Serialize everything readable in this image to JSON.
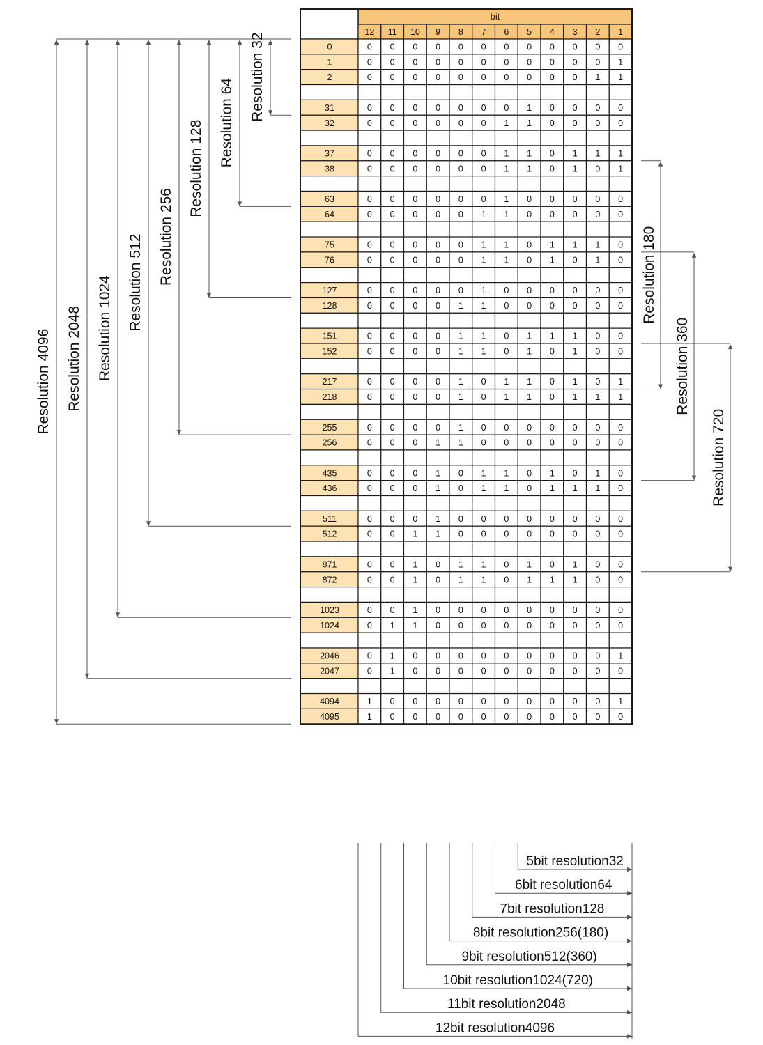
{
  "header": {
    "title": "bit",
    "bits": [
      "12",
      "11",
      "10",
      "9",
      "8",
      "7",
      "6",
      "5",
      "4",
      "3",
      "2",
      "1"
    ]
  },
  "rows": [
    {
      "label": "0",
      "bits": "000000000000"
    },
    {
      "label": "1",
      "bits": "000000000001"
    },
    {
      "label": "2",
      "bits": "000000000011"
    },
    {
      "label": "",
      "bits": ""
    },
    {
      "label": "31",
      "bits": "000000010000"
    },
    {
      "label": "32",
      "bits": "000000110000"
    },
    {
      "label": "",
      "bits": ""
    },
    {
      "label": "37",
      "bits": "000000110111"
    },
    {
      "label": "38",
      "bits": "000000110101"
    },
    {
      "label": "",
      "bits": ""
    },
    {
      "label": "63",
      "bits": "000000100000"
    },
    {
      "label": "64",
      "bits": "000001100000"
    },
    {
      "label": "",
      "bits": ""
    },
    {
      "label": "75",
      "bits": "000001101110"
    },
    {
      "label": "76",
      "bits": "000001101010"
    },
    {
      "label": "",
      "bits": ""
    },
    {
      "label": "127",
      "bits": "000001000000"
    },
    {
      "label": "128",
      "bits": "000011000000"
    },
    {
      "label": "",
      "bits": ""
    },
    {
      "label": "151",
      "bits": "000011011100"
    },
    {
      "label": "152",
      "bits": "000011010100"
    },
    {
      "label": "",
      "bits": ""
    },
    {
      "label": "217",
      "bits": "000010110101"
    },
    {
      "label": "218",
      "bits": "000010110111"
    },
    {
      "label": "",
      "bits": ""
    },
    {
      "label": "255",
      "bits": "000010000000"
    },
    {
      "label": "256",
      "bits": "000110000000"
    },
    {
      "label": "",
      "bits": ""
    },
    {
      "label": "435",
      "bits": "000101101010"
    },
    {
      "label": "436",
      "bits": "000101101110"
    },
    {
      "label": "",
      "bits": ""
    },
    {
      "label": "511",
      "bits": "000100000000"
    },
    {
      "label": "512",
      "bits": "001100000000"
    },
    {
      "label": "",
      "bits": ""
    },
    {
      "label": "871",
      "bits": "001011010100"
    },
    {
      "label": "872",
      "bits": "001011011100"
    },
    {
      "label": "",
      "bits": ""
    },
    {
      "label": "1023",
      "bits": "001000000000"
    },
    {
      "label": "1024",
      "bits": "011000000000"
    },
    {
      "label": "",
      "bits": ""
    },
    {
      "label": "2046",
      "bits": "010000000001"
    },
    {
      "label": "2047",
      "bits": "010000000000"
    },
    {
      "label": "",
      "bits": ""
    },
    {
      "label": "4094",
      "bits": "100000000001"
    },
    {
      "label": "4095",
      "bits": "100000000000"
    }
  ],
  "left_brackets": [
    {
      "label": "Resolution 32",
      "end_row": "31"
    },
    {
      "label": "Resolution 64",
      "end_row": "63"
    },
    {
      "label": "Resolution 128",
      "end_row": "127"
    },
    {
      "label": "Resolution 256",
      "end_row": "255"
    },
    {
      "label": "Resolution 512",
      "end_row": "511"
    },
    {
      "label": "Resolution 1024",
      "end_row": "1023"
    },
    {
      "label": "Resolution 2048",
      "end_row": "2047"
    },
    {
      "label": "Resolution 4096",
      "end_row": "4095"
    }
  ],
  "right_brackets": [
    {
      "label": "Resolution 180",
      "start_row": "38",
      "end_row": "217"
    },
    {
      "label": "Resolution 360",
      "start_row": "76",
      "end_row": "435"
    },
    {
      "label": "Resolution 720",
      "start_row": "152",
      "end_row": "871"
    }
  ],
  "bottom_brackets": [
    {
      "label": "5bit resolution32",
      "bits": 5
    },
    {
      "label": "6bit resolution64",
      "bits": 6
    },
    {
      "label": "7bit resolution128",
      "bits": 7
    },
    {
      "label": "8bit resolution256(180)",
      "bits": 8
    },
    {
      "label": "9bit resolution512(360)",
      "bits": 9
    },
    {
      "label": "10bit resolution1024(720)",
      "bits": 10
    },
    {
      "label": "11bit resolution2048",
      "bits": 11
    },
    {
      "label": "12bit resolution4096",
      "bits": 12
    }
  ],
  "colors": {
    "header_fill": "#f8c67b",
    "row_label_fill": "#fde2b4",
    "grid_line": "#1a1a1a",
    "annotation_line": "#555555",
    "text": "#111111"
  }
}
